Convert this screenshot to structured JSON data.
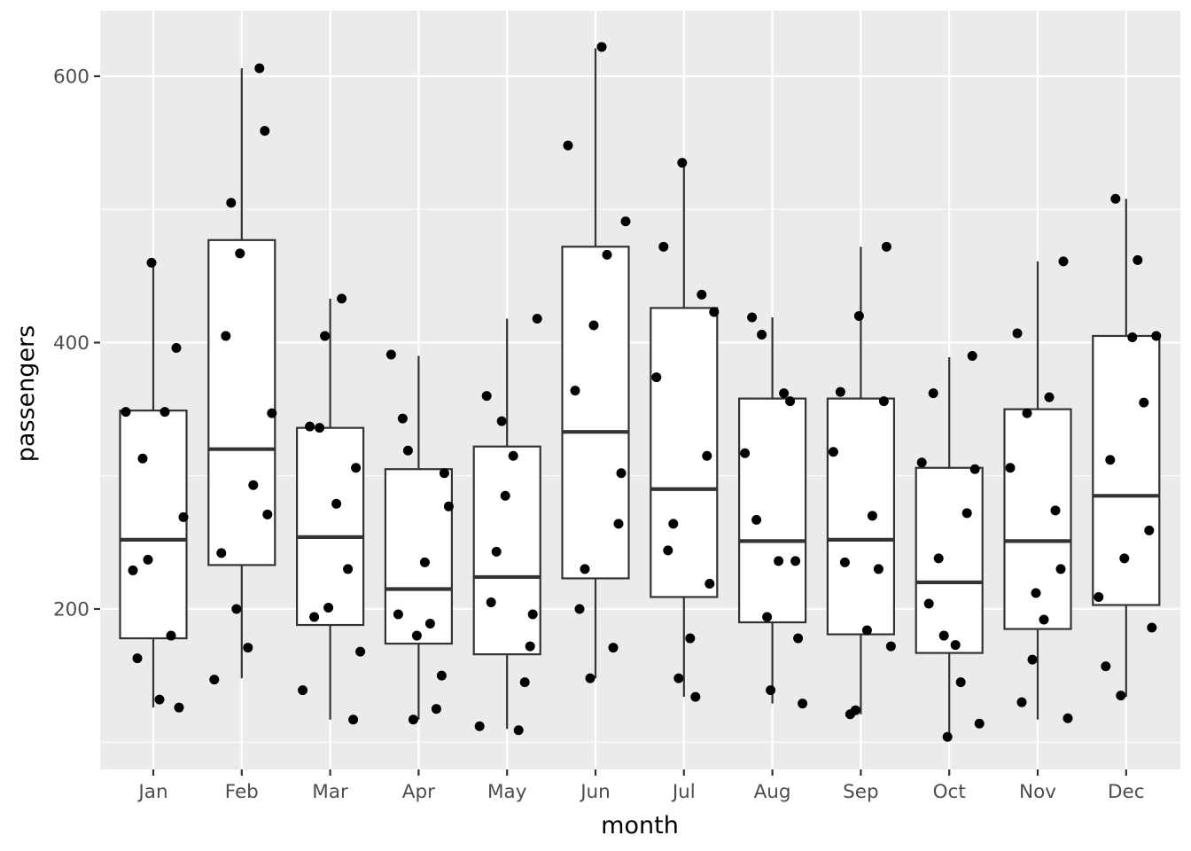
{
  "chart_data": {
    "type": "boxplot",
    "xlabel": "month",
    "ylabel": "passengers",
    "categories": [
      "Jan",
      "Feb",
      "Mar",
      "Apr",
      "May",
      "Jun",
      "Jul",
      "Aug",
      "Sep",
      "Oct",
      "Nov",
      "Dec"
    ],
    "yticks": [
      200,
      400,
      600
    ],
    "ylim": [
      100,
      650
    ],
    "grid": true,
    "boxes": [
      {
        "month": "Jan",
        "lower": 126,
        "q1": 178,
        "median": 252,
        "q3": 349,
        "upper": 460
      },
      {
        "month": "Feb",
        "lower": 148,
        "q1": 233,
        "median": 320,
        "q3": 477,
        "upper": 606
      },
      {
        "month": "Mar",
        "lower": 117,
        "q1": 188,
        "median": 254,
        "q3": 336,
        "upper": 433
      },
      {
        "month": "Apr",
        "lower": 117,
        "q1": 174,
        "median": 215,
        "q3": 305,
        "upper": 390
      },
      {
        "month": "May",
        "lower": 110,
        "q1": 166,
        "median": 224,
        "q3": 322,
        "upper": 418
      },
      {
        "month": "Jun",
        "lower": 148,
        "q1": 223,
        "median": 333,
        "q3": 472,
        "upper": 621
      },
      {
        "month": "Jul",
        "lower": 134,
        "q1": 209,
        "median": 290,
        "q3": 426,
        "upper": 534
      },
      {
        "month": "Aug",
        "lower": 129,
        "q1": 190,
        "median": 251,
        "q3": 358,
        "upper": 419
      },
      {
        "month": "Sep",
        "lower": 121,
        "q1": 181,
        "median": 252,
        "q3": 358,
        "upper": 472
      },
      {
        "month": "Oct",
        "lower": 103,
        "q1": 167,
        "median": 220,
        "q3": 306,
        "upper": 389
      },
      {
        "month": "Nov",
        "lower": 117,
        "q1": 185,
        "median": 251,
        "q3": 350,
        "upper": 461
      },
      {
        "month": "Dec",
        "lower": 134,
        "q1": 203,
        "median": 285,
        "q3": 405,
        "upper": 508
      }
    ],
    "points": [
      {
        "month": "Jan",
        "y": [
          229,
          237,
          180,
          163,
          126,
          132,
          348,
          348,
          460,
          396,
          313,
          269
        ]
      },
      {
        "month": "Feb",
        "y": [
          171,
          147,
          293,
          467,
          559,
          505,
          347,
          242,
          200,
          606,
          405,
          271
        ]
      },
      {
        "month": "Mar",
        "y": [
          336,
          168,
          337,
          405,
          230,
          194,
          306,
          279,
          139,
          433,
          201,
          117
        ]
      },
      {
        "month": "Apr",
        "y": [
          343,
          302,
          235,
          391,
          189,
          180,
          150,
          319,
          277,
          196,
          117,
          125
        ]
      },
      {
        "month": "May",
        "y": [
          285,
          172,
          243,
          418,
          360,
          341,
          145,
          205,
          196,
          315,
          112,
          109
        ]
      },
      {
        "month": "Jun",
        "y": [
          148,
          171,
          200,
          302,
          622,
          548,
          466,
          413,
          264,
          230,
          491,
          364
        ]
      },
      {
        "month": "Jul",
        "y": [
          374,
          134,
          535,
          315,
          264,
          423,
          472,
          148,
          436,
          244,
          219,
          178
        ]
      },
      {
        "month": "Aug",
        "y": [
          129,
          419,
          194,
          356,
          267,
          178,
          236,
          317,
          362,
          139,
          236,
          406
        ]
      },
      {
        "month": "Sep",
        "y": [
          472,
          184,
          318,
          270,
          420,
          356,
          121,
          172,
          363,
          124,
          230,
          235
        ]
      },
      {
        "month": "Oct",
        "y": [
          390,
          238,
          114,
          204,
          180,
          272,
          362,
          305,
          173,
          310,
          145,
          104
        ]
      },
      {
        "month": "Nov",
        "y": [
          274,
          130,
          461,
          192,
          306,
          359,
          212,
          230,
          347,
          118,
          407,
          162
        ]
      },
      {
        "month": "Dec",
        "y": [
          462,
          238,
          259,
          508,
          405,
          157,
          135,
          355,
          312,
          186,
          404,
          209
        ]
      }
    ]
  }
}
